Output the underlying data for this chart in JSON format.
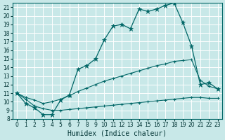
{
  "xlabel": "Humidex (Indice chaleur)",
  "bg_color": "#c8e8e8",
  "grid_color": "#b0d8d8",
  "line_color": "#006666",
  "xlim": [
    -0.5,
    23.5
  ],
  "ylim": [
    8.0,
    21.5
  ],
  "xticks": [
    0,
    1,
    2,
    3,
    4,
    5,
    6,
    7,
    8,
    9,
    10,
    11,
    12,
    13,
    14,
    15,
    16,
    17,
    18,
    19,
    20,
    21,
    22,
    23
  ],
  "yticks": [
    8,
    9,
    10,
    11,
    12,
    13,
    14,
    15,
    16,
    17,
    18,
    19,
    20,
    21
  ],
  "line1_x": [
    0,
    1,
    2,
    3,
    4,
    5,
    6,
    7,
    8,
    9,
    10,
    11,
    12,
    13,
    14,
    15,
    16,
    17,
    18,
    19,
    20,
    21,
    22,
    23
  ],
  "line1_y": [
    11.0,
    9.8,
    9.3,
    8.5,
    8.5,
    10.2,
    10.8,
    13.8,
    14.2,
    15.0,
    17.2,
    18.8,
    19.0,
    18.5,
    20.8,
    20.5,
    20.8,
    21.2,
    21.5,
    19.2,
    16.5,
    12.0,
    12.2,
    11.5
  ],
  "line2_x": [
    0,
    1,
    2,
    3,
    4,
    5,
    6,
    7,
    8,
    9,
    10,
    11,
    12,
    13,
    14,
    15,
    16,
    17,
    18,
    19,
    20,
    21,
    22,
    23
  ],
  "line2_y": [
    11.0,
    10.5,
    10.2,
    9.8,
    10.0,
    10.3,
    10.7,
    11.2,
    11.6,
    12.0,
    12.4,
    12.7,
    13.0,
    13.3,
    13.6,
    13.9,
    14.2,
    14.4,
    14.7,
    14.8,
    14.9,
    12.5,
    11.8,
    11.5
  ],
  "line3_x": [
    0,
    1,
    2,
    3,
    4,
    5,
    6,
    7,
    8,
    9,
    10,
    11,
    12,
    13,
    14,
    15,
    16,
    17,
    18,
    19,
    20,
    21,
    22,
    23
  ],
  "line3_y": [
    11.0,
    10.3,
    9.5,
    9.2,
    9.0,
    9.0,
    9.1,
    9.2,
    9.3,
    9.4,
    9.5,
    9.6,
    9.7,
    9.8,
    9.9,
    10.0,
    10.1,
    10.2,
    10.3,
    10.4,
    10.5,
    10.5,
    10.4,
    10.4
  ]
}
